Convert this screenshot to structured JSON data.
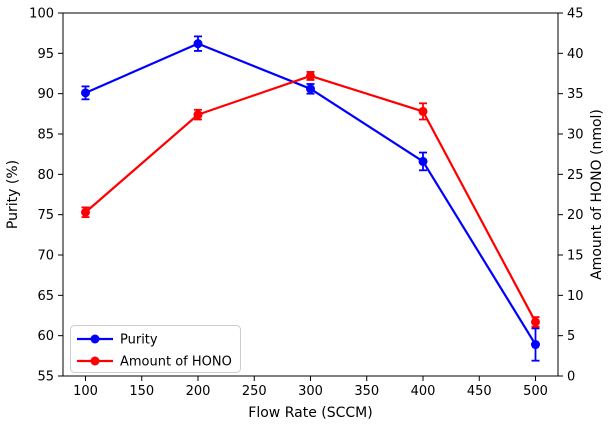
{
  "chart_data": {
    "type": "line",
    "title": "",
    "xlabel": "Flow Rate (SCCM)",
    "x": [
      100,
      200,
      300,
      400,
      500
    ],
    "xlim": [
      80,
      520
    ],
    "x_ticks": [
      100,
      150,
      200,
      250,
      300,
      350,
      400,
      450,
      500
    ],
    "grid": false,
    "left_axis": {
      "label": "Purity (%)",
      "lim": [
        55,
        100
      ],
      "ticks": [
        55,
        60,
        65,
        70,
        75,
        80,
        85,
        90,
        95,
        100
      ]
    },
    "right_axis": {
      "label": "Amount of HONO (nmol)",
      "lim": [
        0,
        45
      ],
      "ticks": [
        0,
        5,
        10,
        15,
        20,
        25,
        30,
        35,
        40,
        45
      ]
    },
    "series": [
      {
        "name": "Purity",
        "axis": "left",
        "color": "#0000ff",
        "marker": "circle",
        "values": [
          90.1,
          96.2,
          90.6,
          81.6,
          58.9
        ],
        "errors": [
          0.8,
          0.9,
          0.6,
          1.1,
          2.0
        ]
      },
      {
        "name": "Amount of HONO",
        "axis": "right",
        "color": "#ff0000",
        "marker": "circle",
        "values": [
          20.3,
          32.4,
          37.2,
          32.8,
          6.7
        ],
        "errors": [
          0.6,
          0.6,
          0.5,
          1.0,
          0.6
        ]
      }
    ],
    "legend": {
      "position": "lower-left",
      "entries": [
        "Purity",
        "Amount of HONO"
      ],
      "border_color": "#cccccc",
      "background": "#ffffff"
    },
    "colors": {
      "spine": "#000000",
      "text": "#000000"
    }
  }
}
